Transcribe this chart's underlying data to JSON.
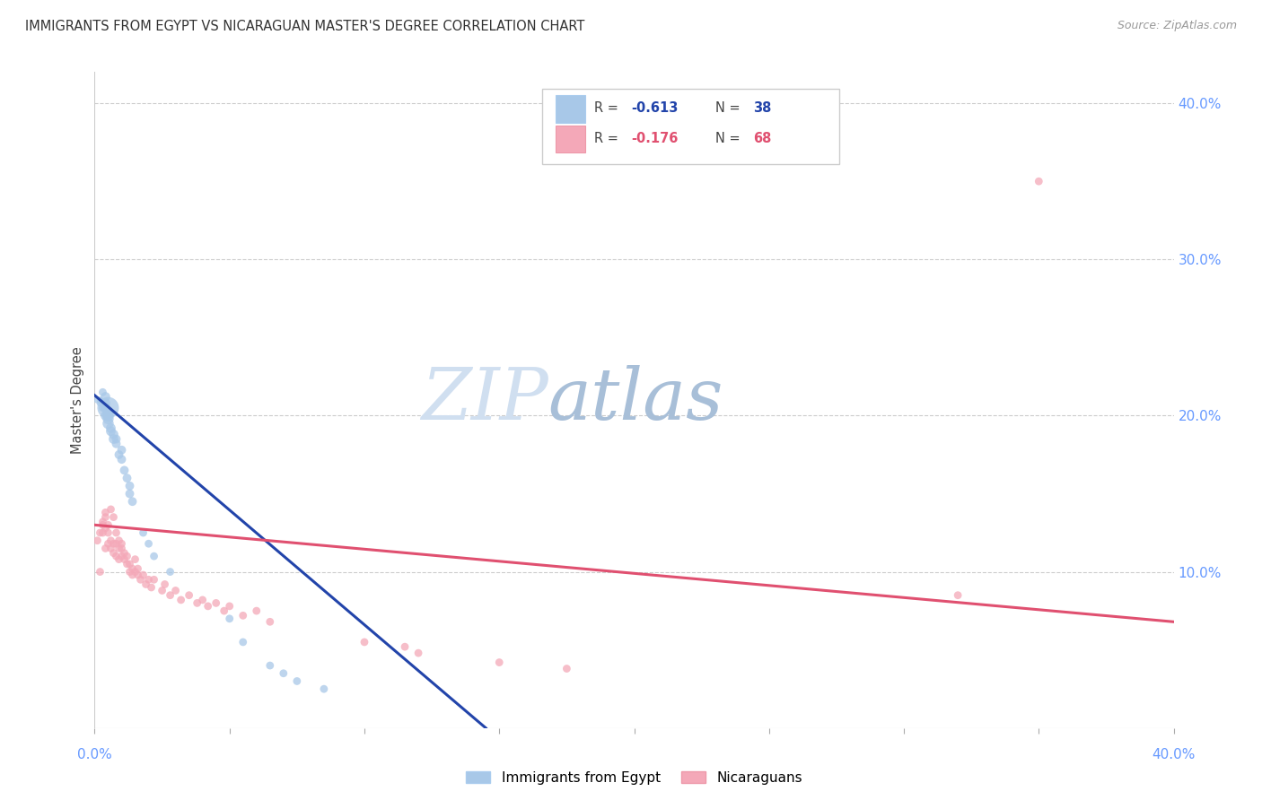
{
  "title": "IMMIGRANTS FROM EGYPT VS NICARAGUAN MASTER'S DEGREE CORRELATION CHART",
  "source": "Source: ZipAtlas.com",
  "ylabel": "Master's Degree",
  "legend_blue_label": "Immigrants from Egypt",
  "legend_pink_label": "Nicaraguans",
  "blue_color": "#a8c8e8",
  "pink_color": "#f4a8b8",
  "blue_line_color": "#2244aa",
  "pink_line_color": "#e05070",
  "xlim": [
    0.0,
    0.4
  ],
  "ylim": [
    0.0,
    0.42
  ],
  "blue_scatter_x": [
    0.001,
    0.002,
    0.002,
    0.003,
    0.003,
    0.004,
    0.004,
    0.004,
    0.004,
    0.005,
    0.005,
    0.005,
    0.005,
    0.005,
    0.006,
    0.006,
    0.007,
    0.007,
    0.008,
    0.008,
    0.009,
    0.01,
    0.01,
    0.011,
    0.012,
    0.013,
    0.013,
    0.014,
    0.018,
    0.02,
    0.022,
    0.028,
    0.05,
    0.055,
    0.065,
    0.07,
    0.075,
    0.085
  ],
  "blue_scatter_y": [
    0.21,
    0.208,
    0.21,
    0.205,
    0.215,
    0.2,
    0.205,
    0.208,
    0.212,
    0.195,
    0.198,
    0.2,
    0.202,
    0.205,
    0.19,
    0.192,
    0.185,
    0.188,
    0.182,
    0.185,
    0.175,
    0.172,
    0.178,
    0.165,
    0.16,
    0.15,
    0.155,
    0.145,
    0.125,
    0.118,
    0.11,
    0.1,
    0.07,
    0.055,
    0.04,
    0.035,
    0.03,
    0.025
  ],
  "blue_scatter_size": [
    30,
    30,
    30,
    40,
    40,
    60,
    60,
    60,
    60,
    80,
    80,
    80,
    80,
    300,
    60,
    60,
    60,
    60,
    50,
    50,
    50,
    50,
    50,
    50,
    50,
    50,
    50,
    50,
    40,
    40,
    40,
    40,
    40,
    40,
    40,
    40,
    40,
    40
  ],
  "pink_scatter_x": [
    0.001,
    0.002,
    0.002,
    0.003,
    0.003,
    0.003,
    0.004,
    0.004,
    0.004,
    0.004,
    0.005,
    0.005,
    0.005,
    0.006,
    0.006,
    0.006,
    0.007,
    0.007,
    0.007,
    0.008,
    0.008,
    0.008,
    0.009,
    0.009,
    0.009,
    0.01,
    0.01,
    0.01,
    0.011,
    0.011,
    0.012,
    0.012,
    0.013,
    0.013,
    0.014,
    0.014,
    0.015,
    0.015,
    0.016,
    0.016,
    0.017,
    0.018,
    0.019,
    0.02,
    0.021,
    0.022,
    0.025,
    0.026,
    0.028,
    0.03,
    0.032,
    0.035,
    0.038,
    0.04,
    0.042,
    0.045,
    0.048,
    0.05,
    0.055,
    0.06,
    0.065,
    0.1,
    0.115,
    0.12,
    0.15,
    0.175,
    0.32,
    0.35
  ],
  "pink_scatter_y": [
    0.12,
    0.1,
    0.125,
    0.125,
    0.13,
    0.132,
    0.115,
    0.128,
    0.135,
    0.138,
    0.118,
    0.125,
    0.13,
    0.115,
    0.12,
    0.14,
    0.112,
    0.118,
    0.135,
    0.11,
    0.118,
    0.125,
    0.108,
    0.115,
    0.12,
    0.11,
    0.115,
    0.118,
    0.108,
    0.112,
    0.105,
    0.11,
    0.1,
    0.105,
    0.098,
    0.102,
    0.1,
    0.108,
    0.098,
    0.102,
    0.095,
    0.098,
    0.092,
    0.095,
    0.09,
    0.095,
    0.088,
    0.092,
    0.085,
    0.088,
    0.082,
    0.085,
    0.08,
    0.082,
    0.078,
    0.08,
    0.075,
    0.078,
    0.072,
    0.075,
    0.068,
    0.055,
    0.052,
    0.048,
    0.042,
    0.038,
    0.085,
    0.35
  ],
  "pink_scatter_size": [
    40,
    40,
    40,
    40,
    40,
    40,
    40,
    40,
    40,
    40,
    40,
    40,
    40,
    40,
    40,
    40,
    40,
    40,
    40,
    40,
    40,
    40,
    40,
    40,
    40,
    40,
    40,
    40,
    40,
    40,
    40,
    40,
    40,
    40,
    40,
    40,
    40,
    40,
    40,
    40,
    40,
    40,
    40,
    40,
    40,
    40,
    40,
    40,
    40,
    40,
    40,
    40,
    40,
    40,
    40,
    40,
    40,
    40,
    40,
    40,
    40,
    40,
    40,
    40,
    40,
    40,
    40,
    40
  ],
  "blue_line_x0": 0.0,
  "blue_line_y0": 0.213,
  "blue_line_x1": 0.145,
  "blue_line_y1": 0.0,
  "pink_line_x0": 0.0,
  "pink_line_y0": 0.13,
  "pink_line_x1": 0.4,
  "pink_line_y1": 0.068
}
